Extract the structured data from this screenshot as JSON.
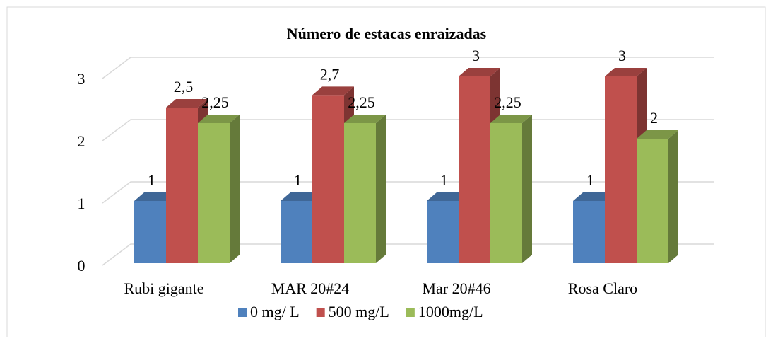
{
  "chart_data": {
    "type": "bar3d",
    "title": "Número de estacas enraizadas",
    "categories": [
      "Rubi gigante",
      "MAR 20#24",
      "Mar 20#46",
      "Rosa Claro"
    ],
    "series": [
      {
        "name": "0 mg/ L",
        "color": "#4f81bd",
        "values": [
          1,
          1,
          1,
          1
        ],
        "value_labels": [
          "1",
          "1",
          "1",
          "1"
        ]
      },
      {
        "name": "500 mg/L",
        "color": "#c0504d",
        "values": [
          2.5,
          2.7,
          3,
          3
        ],
        "value_labels": [
          "2,5",
          "2,7",
          "3",
          "3"
        ]
      },
      {
        "name": "1000mg/L",
        "color": "#9bbb59",
        "values": [
          2.25,
          2.25,
          2.25,
          2
        ],
        "value_labels": [
          "2,25",
          "2,25",
          "2,25",
          "2"
        ]
      }
    ],
    "ylim": [
      0,
      3
    ],
    "yticks": [
      0,
      1,
      2,
      3
    ],
    "grid": true,
    "legend": "bottom"
  }
}
